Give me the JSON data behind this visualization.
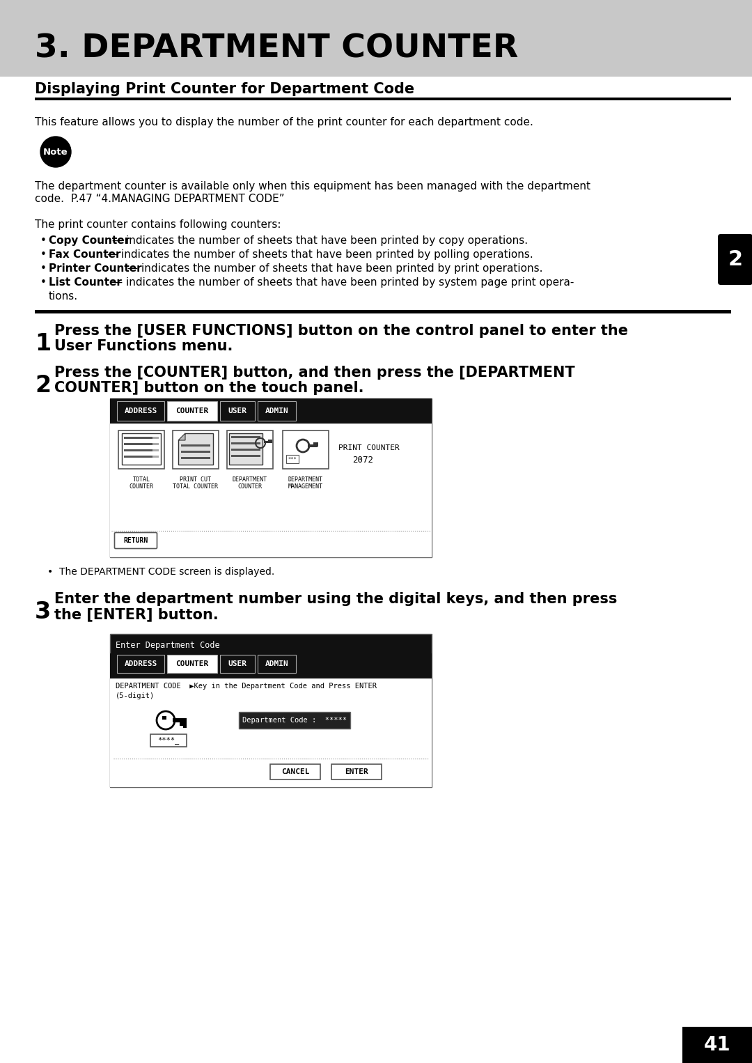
{
  "title": "3. DEPARTMENT COUNTER",
  "subtitle": "Displaying Print Counter for Department Code",
  "intro_text": "This feature allows you to display the number of the print counter for each department code.",
  "note_label": "Note",
  "note_line1": "The department counter is available only when this equipment has been managed with the department",
  "note_line2": "code.  P.47 “4.MANAGING DEPARTMENT CODE”",
  "counters_intro": "The print counter contains following counters:",
  "counter_bold": [
    "Copy Counter",
    "Fax Counter",
    "Printer Counter",
    "List Counter"
  ],
  "counter_normal": [
    " — indicates the number of sheets that have been printed by copy operations.",
    " — indicates the number of sheets that have been printed by polling operations.",
    " — indicates the number of sheets that have been printed by print operations.",
    " — indicates the number of sheets that have been printed by system page print opera-"
  ],
  "counter_extra_line": "tions.",
  "step1_num": "1",
  "step1_line1": "Press the [USER FUNCTIONS] button on the control panel to enter the",
  "step1_line2": "User Functions menu.",
  "step2_num": "2",
  "step2_line1": "Press the [COUNTER] button, and then press the [DEPARTMENT",
  "step2_line2": "COUNTER] button on the touch panel.",
  "step2_note": "•  The DEPARTMENT CODE screen is displayed.",
  "step3_num": "3",
  "step3_line1": "Enter the department number using the digital keys, and then press",
  "step3_line2": "the [ENTER] button.",
  "tab_labels": [
    "ADDRESS",
    "COUNTER",
    "USER",
    "ADMIN"
  ],
  "icon_labels": [
    "TOTAL\nCOUNTER",
    "PRINT CUT\nTOTAL COUNTER",
    "DEPARTMENT\nCOUNTER",
    "DEPARTMENT\nMANAGEMENT"
  ],
  "print_counter_label": "PRINT COUNTER",
  "print_counter_value": "2072",
  "return_label": "RETURN",
  "dept_code_header": "Enter Department Code",
  "dept_code_line1": "DEPARTMENT CODE  ▶Key in the Department Code and Press ENTER",
  "dept_code_line2": "(5-digit)",
  "dept_code_box": "Department Code :  *****",
  "key_stars": "****_",
  "cancel_label": "CANCEL",
  "enter_label": "ENTER",
  "side_tab": "2",
  "page_num": "41",
  "bg_color": "#ffffff",
  "header_bg": "#c8c8c8",
  "black": "#000000",
  "screen_bg": "#111111",
  "white": "#ffffff"
}
